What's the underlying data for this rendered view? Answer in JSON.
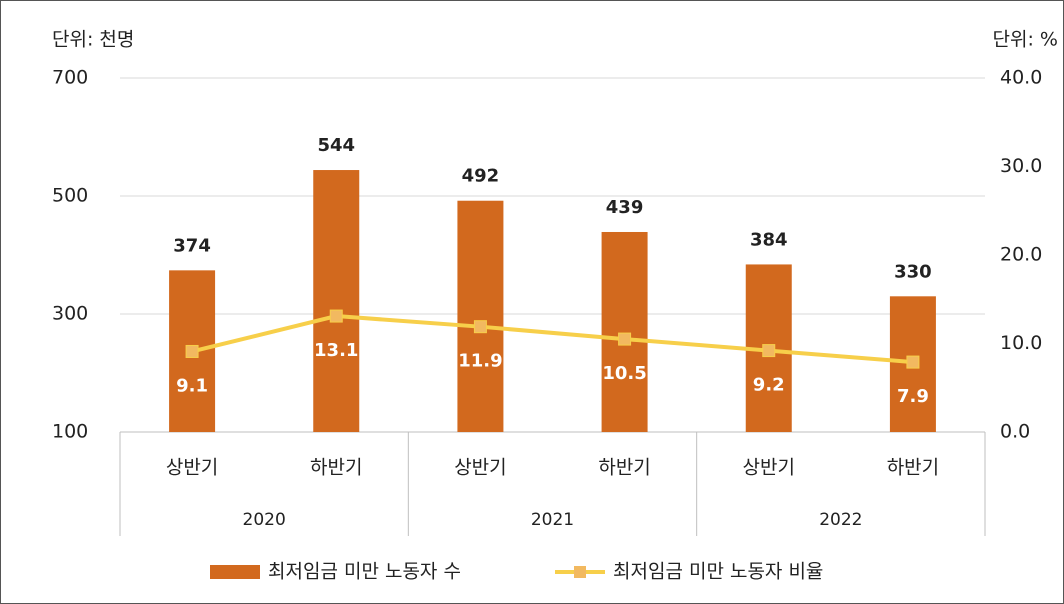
{
  "chart_data": {
    "type": "bar",
    "y_unit_label": "단위: 천명",
    "y2_unit_label": "단위: %",
    "categories": [
      "상반기",
      "하반기",
      "상반기",
      "하반기",
      "상반기",
      "하반기"
    ],
    "groups": [
      "2020",
      "2021",
      "2022"
    ],
    "series": [
      {
        "name": "최저임금 미만 노동자 수",
        "type": "bar",
        "color": "#d2691e",
        "values": [
          374,
          544,
          492,
          439,
          384,
          330
        ]
      },
      {
        "name": "최저임금 미만 노동자 비율",
        "type": "line",
        "axis": "y2",
        "color": "#f7cf4a",
        "values": [
          9.1,
          13.1,
          11.9,
          10.5,
          9.2,
          7.9
        ]
      }
    ],
    "ylim": [
      100,
      700
    ],
    "yticks": [
      100,
      300,
      500,
      700
    ],
    "y2lim": [
      0,
      40
    ],
    "y2ticks": [
      {
        "value": 0,
        "label": "0.0"
      },
      {
        "value": 10,
        "label": "10.0"
      },
      {
        "value": 20,
        "label": "20.0"
      },
      {
        "value": 30,
        "label": "30.0"
      },
      {
        "value": 40,
        "label": "40.0"
      }
    ],
    "grid": true,
    "legend": "bottom"
  }
}
